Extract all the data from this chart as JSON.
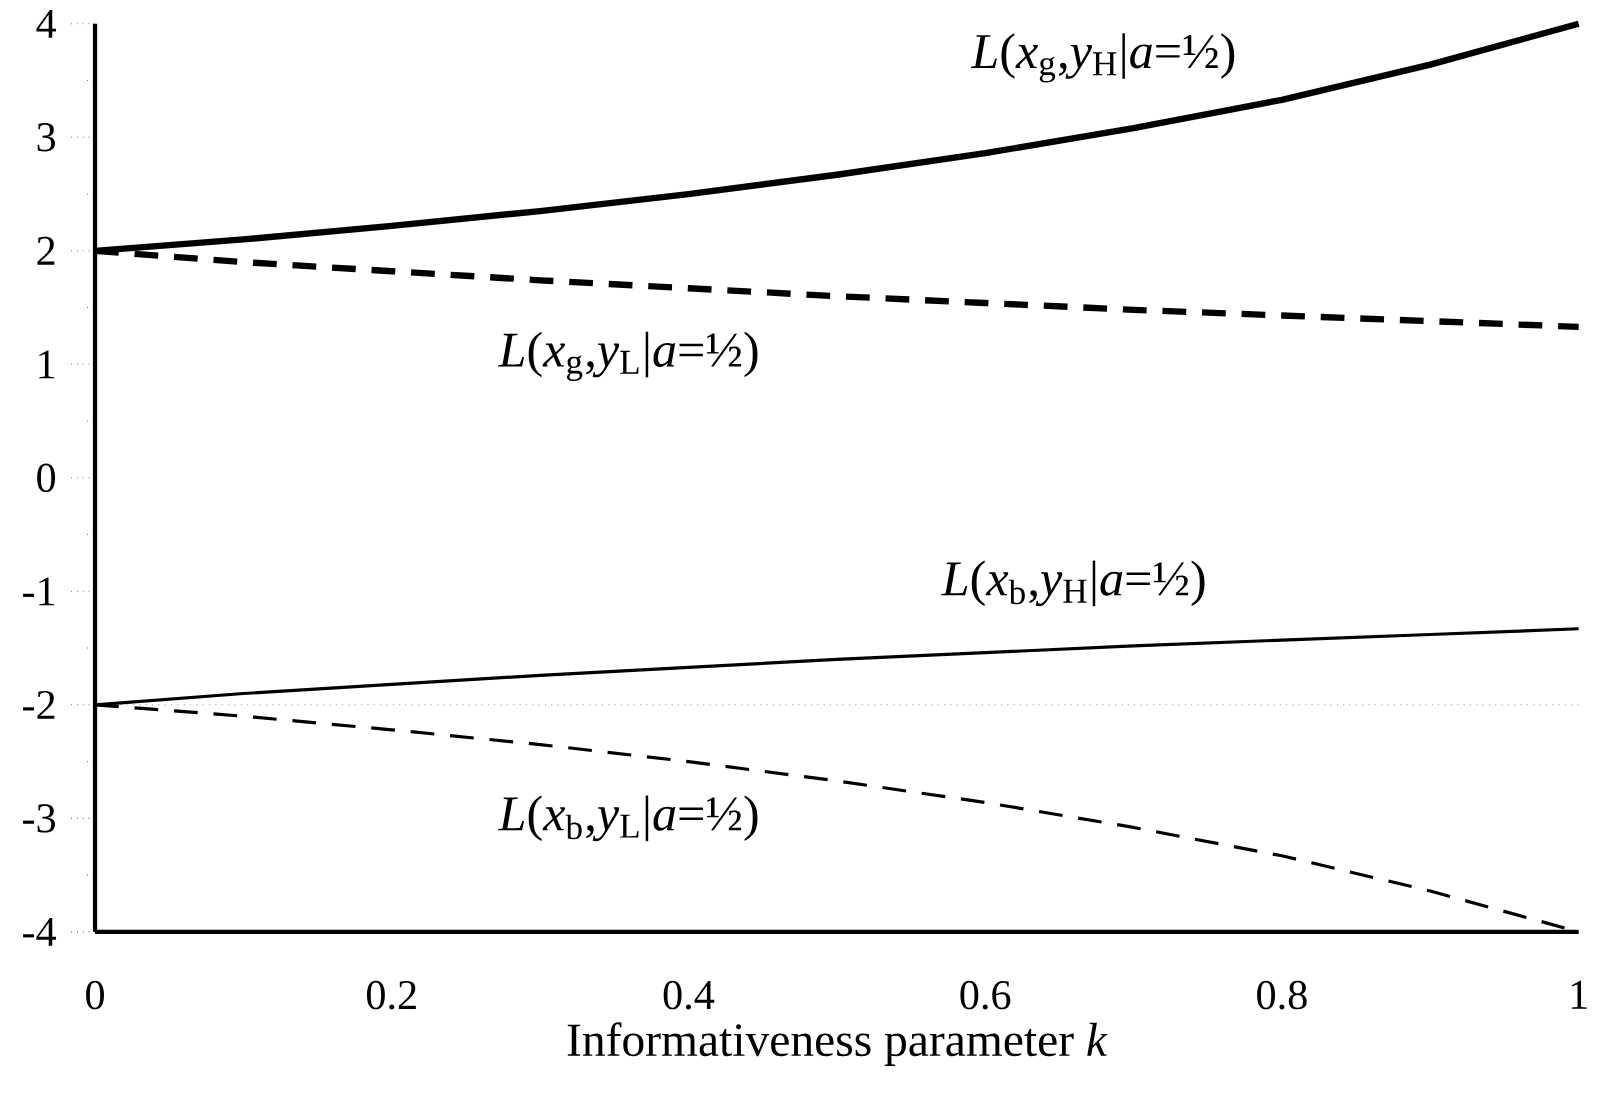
{
  "chart_data": {
    "type": "line",
    "xlabel": "Informativeness parameter *k*",
    "x": [
      0,
      0.1,
      0.2,
      0.3,
      0.4,
      0.5,
      0.6,
      0.7,
      0.8,
      0.9,
      1
    ],
    "xlim": [
      0,
      1
    ],
    "xticks": [
      0,
      0.2,
      0.4,
      0.6,
      0.8,
      1
    ],
    "ylim": [
      -4,
      4
    ],
    "yticks": [
      -4,
      -3,
      -2,
      -1,
      0,
      1,
      2,
      3,
      4
    ],
    "marker": "none",
    "ref_lines": [
      {
        "axis": "y",
        "value": -2,
        "color": "#999999",
        "line_style": "dotted"
      }
    ],
    "series": [
      {
        "name": "*L*(*x*$_{g}$,*y*$_{H}$|*a*=½)",
        "color": "#000000",
        "line_style": "solid",
        "values": [
          2,
          2.1,
          2.22,
          2.35,
          2.5,
          2.67,
          2.86,
          3.08,
          3.33,
          3.64,
          4
        ]
      },
      {
        "name": "*L*(*x*$_{g}$,*y*$_{L}$|*a*=½)",
        "color": "#000000",
        "line_style": "dashed",
        "values": [
          2,
          1.9,
          1.82,
          1.74,
          1.67,
          1.6,
          1.54,
          1.48,
          1.43,
          1.38,
          1.33
        ]
      },
      {
        "name": "*L*(*x*$_{b}$,*y*$_{H}$|*a*=½)",
        "color": "#000000",
        "line_style": "solid",
        "values": [
          -2,
          -1.9,
          -1.82,
          -1.74,
          -1.67,
          -1.6,
          -1.54,
          -1.48,
          -1.43,
          -1.38,
          -1.33
        ]
      },
      {
        "name": "*L*(*x*$_{b}$,*y*$_{L}$|*a*=½)",
        "color": "#000000",
        "line_style": "dashed",
        "values": [
          -2,
          -2.1,
          -2.22,
          -2.35,
          -2.5,
          -2.67,
          -2.86,
          -3.08,
          -3.33,
          -3.64,
          -4
        ]
      }
    ]
  }
}
